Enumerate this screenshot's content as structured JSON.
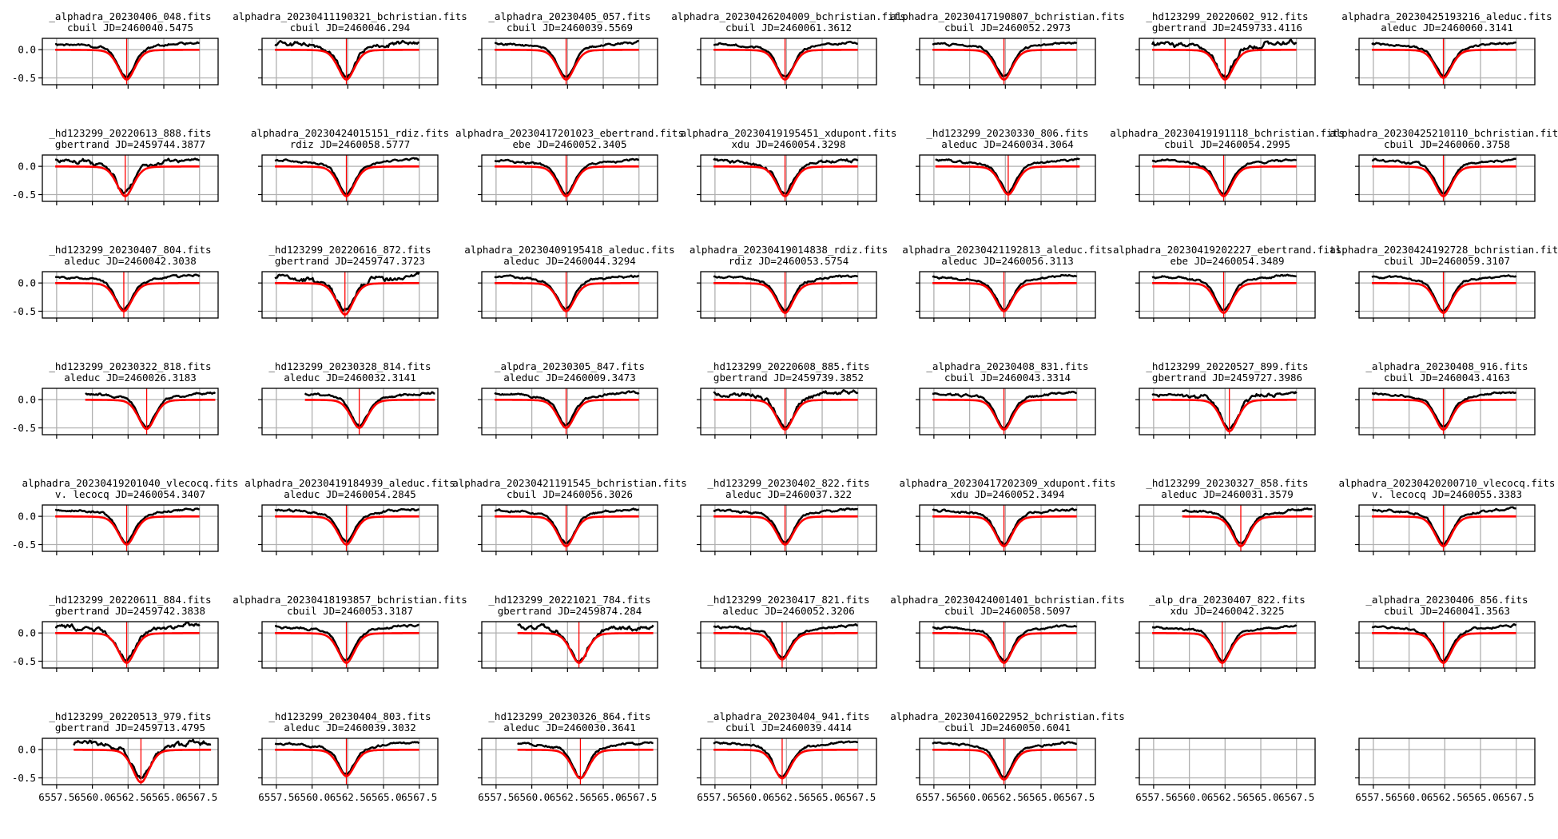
{
  "chart_data": {
    "type": "line",
    "layout": {
      "rows": 7,
      "cols": 7,
      "sharex": true,
      "sharey": true
    },
    "xlim": [
      6556.5,
      6568.8
    ],
    "ylim": [
      -0.62,
      0.2
    ],
    "xticks": [
      6557.5,
      6560.0,
      6562.5,
      6565.0,
      6567.5
    ],
    "xtick_labels": [
      "6557.5",
      "6560.0",
      "6562.5",
      "6565.0",
      "6567.5"
    ],
    "yticks": [
      0.0,
      -0.5
    ],
    "ytick_labels": [
      "0.0",
      "-0.5"
    ],
    "grid": true,
    "series_colors": {
      "observed": "#000000",
      "fit": "#ff0000",
      "line_center_marker": "#ff0000"
    },
    "panels": [
      {
        "file": "_alphadra_20230406_048.fits",
        "info": "cbuil JD=2460040.5475",
        "x0": 6557.4,
        "x1": 6567.5,
        "center": 6562.4,
        "depth": 0.53,
        "noise": 0.02
      },
      {
        "file": "alphadra_20230411190321_bchristian.fits",
        "info": "cbuil JD=2460046.294",
        "x0": 6557.4,
        "x1": 6567.5,
        "center": 6562.4,
        "depth": 0.53,
        "noise": 0.04
      },
      {
        "file": "_alphadra_20230405_057.fits",
        "info": "cbuil JD=2460039.5569",
        "x0": 6557.4,
        "x1": 6567.5,
        "center": 6562.4,
        "depth": 0.53,
        "noise": 0.02
      },
      {
        "file": "alphadra_20230426204009_bchristian.fits",
        "info": "cbuil JD=2460061.3612",
        "x0": 6557.4,
        "x1": 6567.5,
        "center": 6562.4,
        "depth": 0.53,
        "noise": 0.02
      },
      {
        "file": "alphadra_20230417190807_bchristian.fits",
        "info": "cbuil JD=2460052.2973",
        "x0": 6557.4,
        "x1": 6567.5,
        "center": 6562.4,
        "depth": 0.53,
        "noise": 0.02
      },
      {
        "file": "_hd123299_20220602_912.fits",
        "info": "gbertrand JD=2459733.4116",
        "x0": 6557.4,
        "x1": 6567.5,
        "center": 6562.5,
        "depth": 0.53,
        "noise": 0.05
      },
      {
        "file": "alphadra_20230425193216_aleduc.fits",
        "info": "aleduc JD=2460060.3141",
        "x0": 6557.4,
        "x1": 6567.5,
        "center": 6562.4,
        "depth": 0.5,
        "noise": 0.02
      },
      {
        "file": "_hd123299_20220613_888.fits",
        "info": "gbertrand JD=2459744.3877",
        "x0": 6557.4,
        "x1": 6567.5,
        "center": 6562.3,
        "depth": 0.53,
        "noise": 0.04
      },
      {
        "file": "alphadra_20230424015151_rdiz.fits",
        "info": "rdiz JD=2460058.5777",
        "x0": 6557.4,
        "x1": 6567.5,
        "center": 6562.4,
        "depth": 0.53,
        "noise": 0.02
      },
      {
        "file": "alphadra_20230417201023_ebertrand.fits",
        "info": "ebe JD=2460052.3405",
        "x0": 6557.4,
        "x1": 6567.5,
        "center": 6562.4,
        "depth": 0.53,
        "noise": 0.02
      },
      {
        "file": "alphadra_20230419195451_xdupont.fits",
        "info": "xdu JD=2460054.3298",
        "x0": 6557.4,
        "x1": 6567.5,
        "center": 6562.4,
        "depth": 0.53,
        "noise": 0.03
      },
      {
        "file": "_hd123299_20230330_806.fits",
        "info": "aleduc JD=2460034.3064",
        "x0": 6557.6,
        "x1": 6567.7,
        "center": 6562.7,
        "depth": 0.5,
        "noise": 0.02
      },
      {
        "file": "alphadra_20230419191118_bchristian.fits",
        "info": "cbuil JD=2460054.2995",
        "x0": 6557.4,
        "x1": 6567.5,
        "center": 6562.4,
        "depth": 0.53,
        "noise": 0.02
      },
      {
        "file": "alphadra_20230425210110_bchristian.fits",
        "info": "cbuil JD=2460060.3758",
        "x0": 6557.4,
        "x1": 6567.5,
        "center": 6562.4,
        "depth": 0.53,
        "noise": 0.02
      },
      {
        "file": "_hd123299_20230407_804.fits",
        "info": "aleduc JD=2460042.3038",
        "x0": 6557.4,
        "x1": 6567.5,
        "center": 6562.2,
        "depth": 0.5,
        "noise": 0.02
      },
      {
        "file": "_hd123299_20220616_872.fits",
        "info": "gbertrand JD=2459747.3723",
        "x0": 6557.4,
        "x1": 6567.5,
        "center": 6562.3,
        "depth": 0.56,
        "noise": 0.05
      },
      {
        "file": "alphadra_20230409195418_aleduc.fits",
        "info": "aleduc JD=2460044.3294",
        "x0": 6557.4,
        "x1": 6567.5,
        "center": 6562.4,
        "depth": 0.5,
        "noise": 0.02
      },
      {
        "file": "alphadra_20230419014838_rdiz.fits",
        "info": "rdiz JD=2460053.5754",
        "x0": 6557.4,
        "x1": 6567.5,
        "center": 6562.4,
        "depth": 0.53,
        "noise": 0.02
      },
      {
        "file": "alphadra_20230421192813_aleduc.fits",
        "info": "aleduc JD=2460056.3113",
        "x0": 6557.4,
        "x1": 6567.5,
        "center": 6562.4,
        "depth": 0.5,
        "noise": 0.02
      },
      {
        "file": "alphadra_20230419202227_ebertrand.fits",
        "info": "ebe JD=2460054.3489",
        "x0": 6557.4,
        "x1": 6567.5,
        "center": 6562.4,
        "depth": 0.53,
        "noise": 0.02
      },
      {
        "file": "alphadra_20230424192728_bchristian.fits",
        "info": "cbuil JD=2460059.3107",
        "x0": 6557.4,
        "x1": 6567.5,
        "center": 6562.4,
        "depth": 0.53,
        "noise": 0.02
      },
      {
        "file": "_hd123299_20230322_818.fits",
        "info": "aleduc JD=2460026.3183",
        "x0": 6559.5,
        "x1": 6568.6,
        "center": 6563.8,
        "depth": 0.52,
        "noise": 0.02
      },
      {
        "file": "_hd123299_20230328_814.fits",
        "info": "aleduc JD=2460032.3141",
        "x0": 6559.5,
        "x1": 6568.6,
        "center": 6563.3,
        "depth": 0.5,
        "noise": 0.02
      },
      {
        "file": "_alpdra_20230305_847.fits",
        "info": "aleduc JD=2460009.3473",
        "x0": 6557.4,
        "x1": 6567.5,
        "center": 6562.4,
        "depth": 0.5,
        "noise": 0.02
      },
      {
        "file": "_hd123299_20220608_885.fits",
        "info": "gbertrand JD=2459739.3852",
        "x0": 6557.4,
        "x1": 6567.5,
        "center": 6562.4,
        "depth": 0.53,
        "noise": 0.04
      },
      {
        "file": "_alphadra_20230408_831.fits",
        "info": "cbuil JD=2460043.3314",
        "x0": 6557.4,
        "x1": 6567.5,
        "center": 6562.4,
        "depth": 0.53,
        "noise": 0.02
      },
      {
        "file": "_hd123299_20220527_899.fits",
        "info": "gbertrand JD=2459727.3986",
        "x0": 6557.4,
        "x1": 6567.5,
        "center": 6562.8,
        "depth": 0.56,
        "noise": 0.04
      },
      {
        "file": "_alphadra_20230408_916.fits",
        "info": "cbuil JD=2460043.4163",
        "x0": 6557.4,
        "x1": 6567.5,
        "center": 6562.4,
        "depth": 0.53,
        "noise": 0.02
      },
      {
        "file": "alphadra_20230419201040_vlecocq.fits",
        "info": "v. lecocq JD=2460054.3407",
        "x0": 6557.4,
        "x1": 6567.5,
        "center": 6562.4,
        "depth": 0.5,
        "noise": 0.02
      },
      {
        "file": "alphadra_20230419184939_aleduc.fits",
        "info": "aleduc JD=2460054.2845",
        "x0": 6557.4,
        "x1": 6567.5,
        "center": 6562.4,
        "depth": 0.5,
        "noise": 0.02
      },
      {
        "file": "alphadra_20230421191545_bchristian.fits",
        "info": "cbuil JD=2460056.3026",
        "x0": 6557.4,
        "x1": 6567.5,
        "center": 6562.4,
        "depth": 0.53,
        "noise": 0.02
      },
      {
        "file": "_hd123299_20230402_822.fits",
        "info": "aleduc JD=2460037.322",
        "x0": 6557.4,
        "x1": 6567.5,
        "center": 6562.4,
        "depth": 0.5,
        "noise": 0.02
      },
      {
        "file": "alphadra_20230417202309_xdupont.fits",
        "info": "xdu JD=2460052.3494",
        "x0": 6557.4,
        "x1": 6567.5,
        "center": 6562.4,
        "depth": 0.53,
        "noise": 0.02
      },
      {
        "file": "_hd123299_20230327_858.fits",
        "info": "aleduc JD=2460031.3579",
        "x0": 6559.5,
        "x1": 6568.6,
        "center": 6563.6,
        "depth": 0.53,
        "noise": 0.02
      },
      {
        "file": "alphadra_20230420200710_vlecocq.fits",
        "info": "v. lecocq JD=2460055.3383",
        "x0": 6557.4,
        "x1": 6567.5,
        "center": 6562.4,
        "depth": 0.53,
        "noise": 0.02
      },
      {
        "file": "_hd123299_20220611_884.fits",
        "info": "gbertrand JD=2459742.3838",
        "x0": 6557.4,
        "x1": 6567.5,
        "center": 6562.4,
        "depth": 0.53,
        "noise": 0.04
      },
      {
        "file": "alphadra_20230418193857_bchristian.fits",
        "info": "cbuil JD=2460053.3187",
        "x0": 6557.4,
        "x1": 6567.5,
        "center": 6562.4,
        "depth": 0.53,
        "noise": 0.02
      },
      {
        "file": "_hd123299_20221021_784.fits",
        "info": "gbertrand JD=2459874.284",
        "x0": 6559.0,
        "x1": 6568.5,
        "center": 6563.3,
        "depth": 0.53,
        "noise": 0.04
      },
      {
        "file": "_hd123299_20230417_821.fits",
        "info": "aleduc JD=2460052.3206",
        "x0": 6557.4,
        "x1": 6567.5,
        "center": 6562.2,
        "depth": 0.47,
        "noise": 0.02
      },
      {
        "file": "alphadra_20230424001401_bchristian.fits",
        "info": "cbuil JD=2460058.5097",
        "x0": 6557.4,
        "x1": 6567.5,
        "center": 6562.4,
        "depth": 0.53,
        "noise": 0.02
      },
      {
        "file": "_alp_dra_20230407_822.fits",
        "info": "xdu JD=2460042.3225",
        "x0": 6557.4,
        "x1": 6567.5,
        "center": 6562.3,
        "depth": 0.53,
        "noise": 0.02
      },
      {
        "file": "_alphadra_20230406_856.fits",
        "info": "cbuil JD=2460041.3563",
        "x0": 6557.4,
        "x1": 6567.5,
        "center": 6562.4,
        "depth": 0.53,
        "noise": 0.02
      },
      {
        "file": "_hd123299_20220513_979.fits",
        "info": "gbertrand JD=2459713.4795",
        "x0": 6558.7,
        "x1": 6568.3,
        "center": 6563.4,
        "depth": 0.58,
        "noise": 0.05
      },
      {
        "file": "_hd123299_20230404_803.fits",
        "info": "aleduc JD=2460039.3032",
        "x0": 6557.4,
        "x1": 6567.5,
        "center": 6562.4,
        "depth": 0.47,
        "noise": 0.02
      },
      {
        "file": "_hd123299_20230326_864.fits",
        "info": "aleduc JD=2460030.3641",
        "x0": 6559.0,
        "x1": 6568.5,
        "center": 6563.4,
        "depth": 0.51,
        "noise": 0.02
      },
      {
        "file": "_alphadra_20230404_941.fits",
        "info": "cbuil JD=2460039.4414",
        "x0": 6557.4,
        "x1": 6567.5,
        "center": 6562.2,
        "depth": 0.51,
        "noise": 0.02
      },
      {
        "file": "alphadra_20230416022952_bchristian.fits",
        "info": "cbuil JD=2460050.6041",
        "x0": 6557.4,
        "x1": 6567.5,
        "center": 6562.4,
        "depth": 0.53,
        "noise": 0.02
      }
    ]
  }
}
